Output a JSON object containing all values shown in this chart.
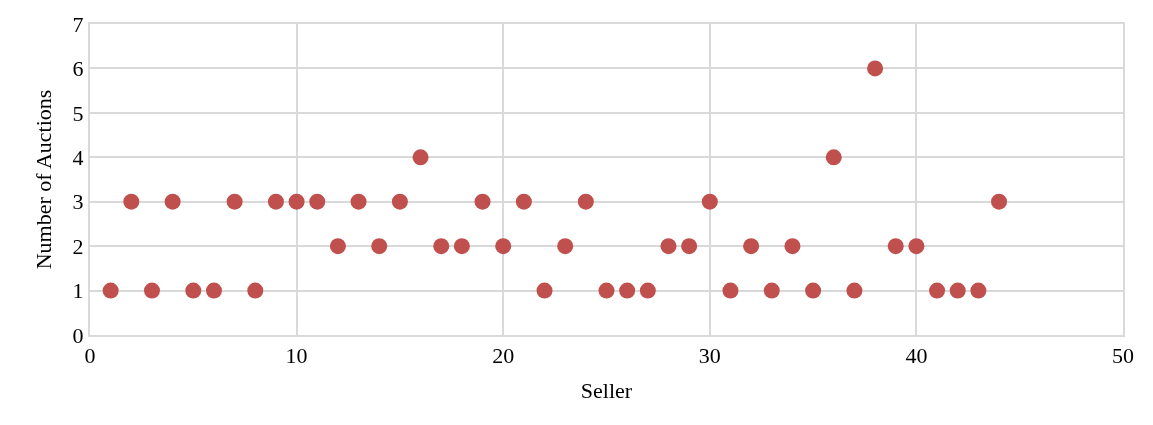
{
  "chart_data": {
    "type": "scatter",
    "xlabel": "Seller",
    "ylabel": "Number of Auctions",
    "x": [
      1,
      2,
      3,
      4,
      5,
      6,
      7,
      8,
      9,
      10,
      11,
      12,
      13,
      14,
      15,
      16,
      17,
      18,
      19,
      20,
      21,
      22,
      23,
      24,
      25,
      26,
      27,
      28,
      29,
      30,
      31,
      32,
      33,
      34,
      35,
      36,
      37,
      38,
      39,
      40,
      41,
      42,
      43,
      44
    ],
    "series": [
      {
        "color": "#c0504d",
        "values": [
          1,
          3,
          1,
          3,
          1,
          1,
          3,
          1,
          3,
          3,
          3,
          2,
          3,
          2,
          3,
          4,
          2,
          2,
          3,
          2,
          3,
          1,
          2,
          3,
          1,
          1,
          1,
          2,
          2,
          3,
          1,
          2,
          1,
          2,
          1,
          4,
          1,
          6,
          2,
          2,
          1,
          1,
          1,
          3
        ]
      }
    ],
    "xlim": [
      0,
      50
    ],
    "xticks": [
      0,
      10,
      20,
      30,
      40,
      50
    ],
    "ylim": [
      0,
      7
    ],
    "yticks": [
      0,
      1,
      2,
      3,
      4,
      5,
      6,
      7
    ],
    "grid": true,
    "marker": "circle"
  }
}
